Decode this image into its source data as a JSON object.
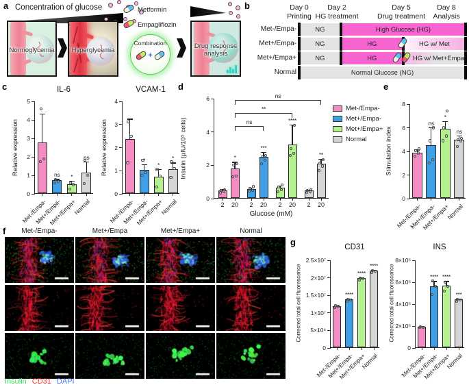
{
  "labels": {
    "a": "a",
    "b": "b",
    "c": "c",
    "d": "d",
    "e": "e",
    "f": "f",
    "g": "g"
  },
  "colors": {
    "pink": "#F28CC2",
    "blue": "#3FA0E8",
    "green": "#B4F18F",
    "gray": "#D5D5D5",
    "hg_pink": "#F763D1",
    "ng_gray": "#E4E4E4"
  },
  "panel_a": {
    "title": "Concentration of glucose",
    "stage1": "Normoglycemia",
    "stage2": "Hyperglycemia",
    "drug1": "Metformin",
    "drug2": "Empagliflozin",
    "combination": "Combination",
    "plus": "+",
    "outcome_line1": "Drug response",
    "outcome_line2": "analysis"
  },
  "panel_b": {
    "days": [
      {
        "day": "Day 0",
        "phase": "Printing",
        "t": 0
      },
      {
        "day": "Day 2",
        "phase": "HG treatment",
        "t": 2
      },
      {
        "day": "Day 5",
        "phase": "Drug treatment",
        "t": 5
      },
      {
        "day": "Day 8",
        "phase": "Analysis",
        "t": 8
      }
    ],
    "rows": [
      {
        "label": "Met-/Empa-",
        "pills": [],
        "segments": [
          {
            "text": "NG",
            "style": "ng",
            "from": 0,
            "to": 2
          },
          {
            "text": "High Glucose (HG)",
            "style": "hg",
            "from": 2,
            "to": 8
          }
        ]
      },
      {
        "label": "Met+/Empa-",
        "pills": [
          "met"
        ],
        "segments": [
          {
            "text": "NG",
            "style": "ng",
            "from": 0,
            "to": 2
          },
          {
            "text": "HG",
            "style": "hg",
            "from": 2,
            "to": 5
          },
          {
            "text": "HG w/ Met",
            "style": "hg-fade",
            "from": 5,
            "to": 8
          }
        ]
      },
      {
        "label": "Met+/Empa+",
        "pills": [
          "met",
          "empa"
        ],
        "segments": [
          {
            "text": "NG",
            "style": "ng",
            "from": 0,
            "to": 2
          },
          {
            "text": "HG",
            "style": "hg",
            "from": 2,
            "to": 5
          },
          {
            "text": "HG w/ Met+Empa",
            "style": "mix-fade",
            "from": 5,
            "to": 8
          }
        ]
      },
      {
        "label": "Normal",
        "pills": [],
        "segments": [
          {
            "text": "Normal Glucose (NG)",
            "style": "ng",
            "from": 0,
            "to": 8
          }
        ]
      }
    ]
  },
  "chart_data": [
    {
      "id": "il6",
      "panel": "c",
      "type": "bar",
      "title": "IL-6",
      "ylabel": "Relative expression",
      "ylim": [
        0,
        5
      ],
      "ytick_vals": [
        0,
        1,
        2,
        3,
        4,
        5
      ],
      "ytick_labels": [
        "0",
        "1",
        "2",
        "3",
        "4",
        "5"
      ],
      "categories": [
        "Met-/Empa-",
        "Met+/Empa-",
        "Met+/Empa+",
        "Normal"
      ],
      "values": [
        2.75,
        0.7,
        0.5,
        1.1
      ],
      "errors": [
        1.6,
        0.1,
        0.22,
        0.65
      ],
      "sig": [
        "",
        "ns",
        "*",
        "ns"
      ],
      "points": [
        [
          1.75,
          1.9,
          4.6
        ],
        [
          0.6,
          0.68,
          0.78
        ],
        [
          0.25,
          0.5,
          0.6
        ],
        [
          0.55,
          1.0,
          1.8
        ]
      ],
      "bar_colors": [
        "pink",
        "blue",
        "green",
        "gray"
      ]
    },
    {
      "id": "vcam1",
      "panel": "c",
      "type": "bar",
      "title": "VCAM-1",
      "ylabel": "Relative expression",
      "ylim": [
        0,
        4
      ],
      "ytick_vals": [
        0,
        1,
        2,
        3,
        4
      ],
      "ytick_labels": [
        "0",
        "1",
        "2",
        "3",
        "4"
      ],
      "categories": [
        "Met-/Empa-",
        "Met+/Empa-",
        "Met+/Empa+",
        "Normal"
      ],
      "values": [
        2.35,
        1.0,
        0.7,
        1.05
      ],
      "errors": [
        0.9,
        0.28,
        0.38,
        0.3
      ],
      "sig": [
        "",
        "*",
        "*",
        "*"
      ],
      "points": [
        [
          1.35,
          2.5,
          3.1
        ],
        [
          0.8,
          0.92,
          1.45
        ],
        [
          0.3,
          0.78,
          1.05
        ],
        [
          0.72,
          1.1,
          1.4
        ]
      ],
      "bar_colors": [
        "pink",
        "blue",
        "green",
        "gray"
      ]
    },
    {
      "id": "insulin",
      "panel": "d",
      "type": "bar-grouped",
      "title": "",
      "ylabel": "Insulin (µIU/10⁵ cells)",
      "xlabel": "Glucose (mM)",
      "ylim": [
        0,
        6
      ],
      "ytick_vals": [
        0,
        2,
        4,
        6
      ],
      "ytick_labels": [
        "0",
        "2",
        "4",
        "6"
      ],
      "categories": [
        "2",
        "20",
        "2",
        "20",
        "2",
        "20",
        "2",
        "20"
      ],
      "values": [
        0.45,
        1.75,
        0.55,
        2.45,
        0.6,
        3.2,
        0.45,
        2.05
      ],
      "errors": [
        0.12,
        0.45,
        0.12,
        0.35,
        0.18,
        1.25,
        0.08,
        0.35
      ],
      "sig": [
        "",
        "*",
        "",
        "***",
        "",
        "****",
        "",
        "**"
      ],
      "points": [
        [
          0.35,
          0.42,
          0.5,
          0.55
        ],
        [
          1.3,
          1.35,
          2.0,
          2.1
        ],
        [
          0.45,
          0.5,
          0.6,
          0.72
        ],
        [
          2.1,
          2.3,
          2.5,
          2.6
        ],
        [
          0.4,
          0.55,
          0.7,
          0.82
        ],
        [
          2.6,
          2.7,
          3.0,
          4.4
        ],
        [
          0.38,
          0.42,
          0.48,
          0.52
        ],
        [
          1.7,
          1.95,
          2.15,
          2.35
        ]
      ],
      "bar_colors": [
        "pink",
        "pink",
        "blue",
        "blue",
        "green",
        "green",
        "gray",
        "gray"
      ],
      "brackets": [
        {
          "from": 1,
          "to": 3,
          "y": 4.35,
          "label": "ns"
        },
        {
          "from": 1,
          "to": 5,
          "y": 5.15,
          "label": "**"
        },
        {
          "from": 1,
          "to": 7,
          "y": 5.9,
          "label": "ns"
        }
      ],
      "legend": [
        "Met-/Empa-",
        "Met+/Empa-",
        "Met+/Empa+",
        "Normal"
      ],
      "legend_colors": [
        "pink",
        "blue",
        "green",
        "gray"
      ]
    },
    {
      "id": "stim",
      "panel": "e",
      "type": "bar",
      "title": "",
      "ylabel": "Stimulation index",
      "ylim": [
        0,
        8
      ],
      "ytick_vals": [
        0,
        2,
        4,
        6,
        8
      ],
      "ytick_labels": [
        "0",
        "2",
        "4",
        "6",
        "8"
      ],
      "categories": [
        "Met-/Empa-",
        "Met+/Empa-",
        "Met+/Empa+",
        "Normal"
      ],
      "values": [
        3.85,
        4.45,
        5.85,
        4.9
      ],
      "errors": [
        0.35,
        1.6,
        0.7,
        0.45
      ],
      "sig": [
        "",
        "ns",
        "*",
        "ns"
      ],
      "points": [
        [
          3.6,
          3.85,
          4.05,
          4.2
        ],
        [
          3.0,
          3.3,
          4.9,
          6.0
        ],
        [
          4.9,
          5.3,
          6.0,
          7.4
        ],
        [
          4.4,
          4.85,
          5.0,
          5.1
        ]
      ],
      "bar_colors": [
        "pink",
        "blue",
        "green",
        "gray"
      ]
    },
    {
      "id": "cd31",
      "panel": "g",
      "type": "bar",
      "title": "CD31",
      "ylabel": "Corrected total cell fluorescence",
      "ylim": [
        0,
        25000000
      ],
      "ytick_vals": [
        0,
        5000000,
        10000000,
        15000000,
        20000000,
        25000000
      ],
      "ytick_labels": [
        "0",
        "5×10⁶",
        "1×10⁷",
        "1.5×10⁷",
        "2×10⁷",
        "2.5×10⁷"
      ],
      "categories": [
        "Met-/Empa-",
        "Met+/Empa-",
        "Met+/Empa+",
        "Normal"
      ],
      "values": [
        11800000,
        13600000,
        19700000,
        21800000
      ],
      "errors": [
        250000,
        500000,
        400000,
        400000
      ],
      "sig": [
        "",
        "****",
        "****",
        "****"
      ],
      "points": [
        [
          11600000,
          11800000,
          12000000
        ],
        [
          13300000,
          13600000,
          13900000
        ],
        [
          19400000,
          19700000,
          20000000
        ],
        [
          21500000,
          21800000,
          22000000
        ]
      ],
      "bar_colors": [
        "pink",
        "blue",
        "green",
        "gray"
      ]
    },
    {
      "id": "ins",
      "panel": "g",
      "type": "bar",
      "title": "INS",
      "ylabel": "Corrected total cell fluorescence",
      "ylim": [
        0,
        800000
      ],
      "ytick_vals": [
        0,
        200000,
        400000,
        600000,
        800000
      ],
      "ytick_labels": [
        "0",
        "2×10⁵",
        "4×10⁵",
        "6×10⁵",
        "8×10⁵"
      ],
      "categories": [
        "Met-/Empa-",
        "Met+/Empa-",
        "Met+/Empa+",
        "Normal"
      ],
      "values": [
        190000,
        555000,
        565000,
        435000
      ],
      "errors": [
        8000,
        55000,
        45000,
        15000
      ],
      "sig": [
        "",
        "****",
        "****",
        "***"
      ],
      "points": [
        [
          186000,
          190000,
          194000
        ],
        [
          490000,
          560000,
          610000
        ],
        [
          520000,
          560000,
          600000
        ],
        [
          425000,
          435000,
          445000
        ]
      ],
      "bar_colors": [
        "pink",
        "blue",
        "green",
        "gray"
      ]
    }
  ],
  "panel_f": {
    "columns": [
      "Met-/Empa-",
      "Met+/Empa",
      "Met+/Empa+",
      "Normal"
    ],
    "channel_rows": [
      "merged",
      "cd31",
      "insulin"
    ],
    "legend": [
      {
        "label": "Insulin",
        "color": "#35E25D"
      },
      {
        "label": "CD31",
        "color": "#FF3434"
      },
      {
        "label": "DAPI",
        "color": "#4A78FF"
      }
    ]
  }
}
